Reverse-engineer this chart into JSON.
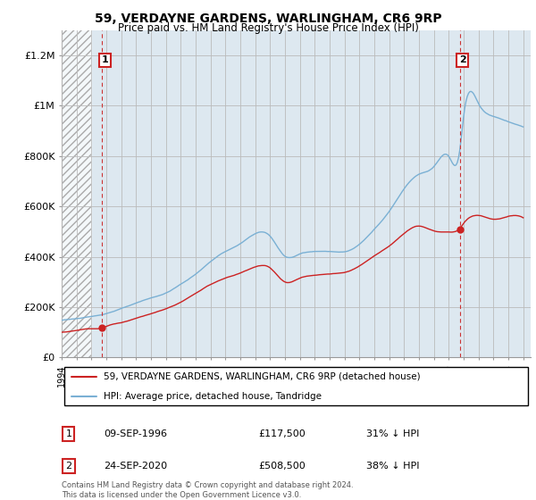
{
  "title_line1": "59, VERDAYNE GARDENS, WARLINGHAM, CR6 9RP",
  "title_line2": "Price paid vs. HM Land Registry's House Price Index (HPI)",
  "xlim": [
    1994.0,
    2025.5
  ],
  "ylim": [
    0,
    1300000
  ],
  "yticks": [
    0,
    200000,
    400000,
    600000,
    800000,
    1000000,
    1200000
  ],
  "ytick_labels": [
    "£0",
    "£200K",
    "£400K",
    "£600K",
    "£800K",
    "£1M",
    "£1.2M"
  ],
  "transaction1_date": 1996.69,
  "transaction1_price": 117500,
  "transaction1_label": "1",
  "transaction2_date": 2020.73,
  "transaction2_price": 508500,
  "transaction2_label": "2",
  "hpi_color": "#7ab0d4",
  "price_color": "#cc2222",
  "vline_color": "#cc3333",
  "plot_bg_color": "#dde8f0",
  "hatch_bg_color": "#c8c8c8",
  "legend_line1": "59, VERDAYNE GARDENS, WARLINGHAM, CR6 9RP (detached house)",
  "legend_line2": "HPI: Average price, detached house, Tandridge",
  "footer": "Contains HM Land Registry data © Crown copyright and database right 2024.\nThis data is licensed under the Open Government Licence v3.0.",
  "grid_color": "#bbbbbb",
  "hpi_anchors_x": [
    1994,
    1995,
    1996,
    1997,
    1998,
    1999,
    2000,
    2001,
    2002,
    2003,
    2004,
    2005,
    2006,
    2007,
    2008,
    2009,
    2010,
    2011,
    2012,
    2013,
    2014,
    2015,
    2016,
    2017,
    2018,
    2019,
    2020,
    2020.73,
    2021,
    2022,
    2023,
    2024,
    2025
  ],
  "hpi_anchors_y": [
    148000,
    155000,
    162000,
    175000,
    195000,
    215000,
    235000,
    255000,
    290000,
    330000,
    380000,
    420000,
    450000,
    490000,
    480000,
    400000,
    410000,
    420000,
    420000,
    420000,
    450000,
    510000,
    580000,
    670000,
    730000,
    760000,
    800000,
    820000,
    960000,
    1010000,
    960000,
    940000,
    920000
  ],
  "price_anchors_x": [
    1994,
    1995,
    1996,
    1996.69,
    1997,
    1998,
    1999,
    2000,
    2001,
    2002,
    2003,
    2004,
    2005,
    2006,
    2007,
    2008,
    2009,
    2010,
    2011,
    2012,
    2013,
    2014,
    2015,
    2016,
    2017,
    2018,
    2019,
    2020,
    2020.73,
    2021,
    2022,
    2023,
    2024,
    2025
  ],
  "price_anchors_y": [
    100000,
    108000,
    115000,
    117500,
    125000,
    140000,
    158000,
    175000,
    195000,
    220000,
    255000,
    290000,
    315000,
    335000,
    360000,
    355000,
    300000,
    315000,
    325000,
    330000,
    335000,
    360000,
    400000,
    440000,
    490000,
    520000,
    500000,
    495000,
    508500,
    530000,
    560000,
    545000,
    555000,
    550000
  ]
}
